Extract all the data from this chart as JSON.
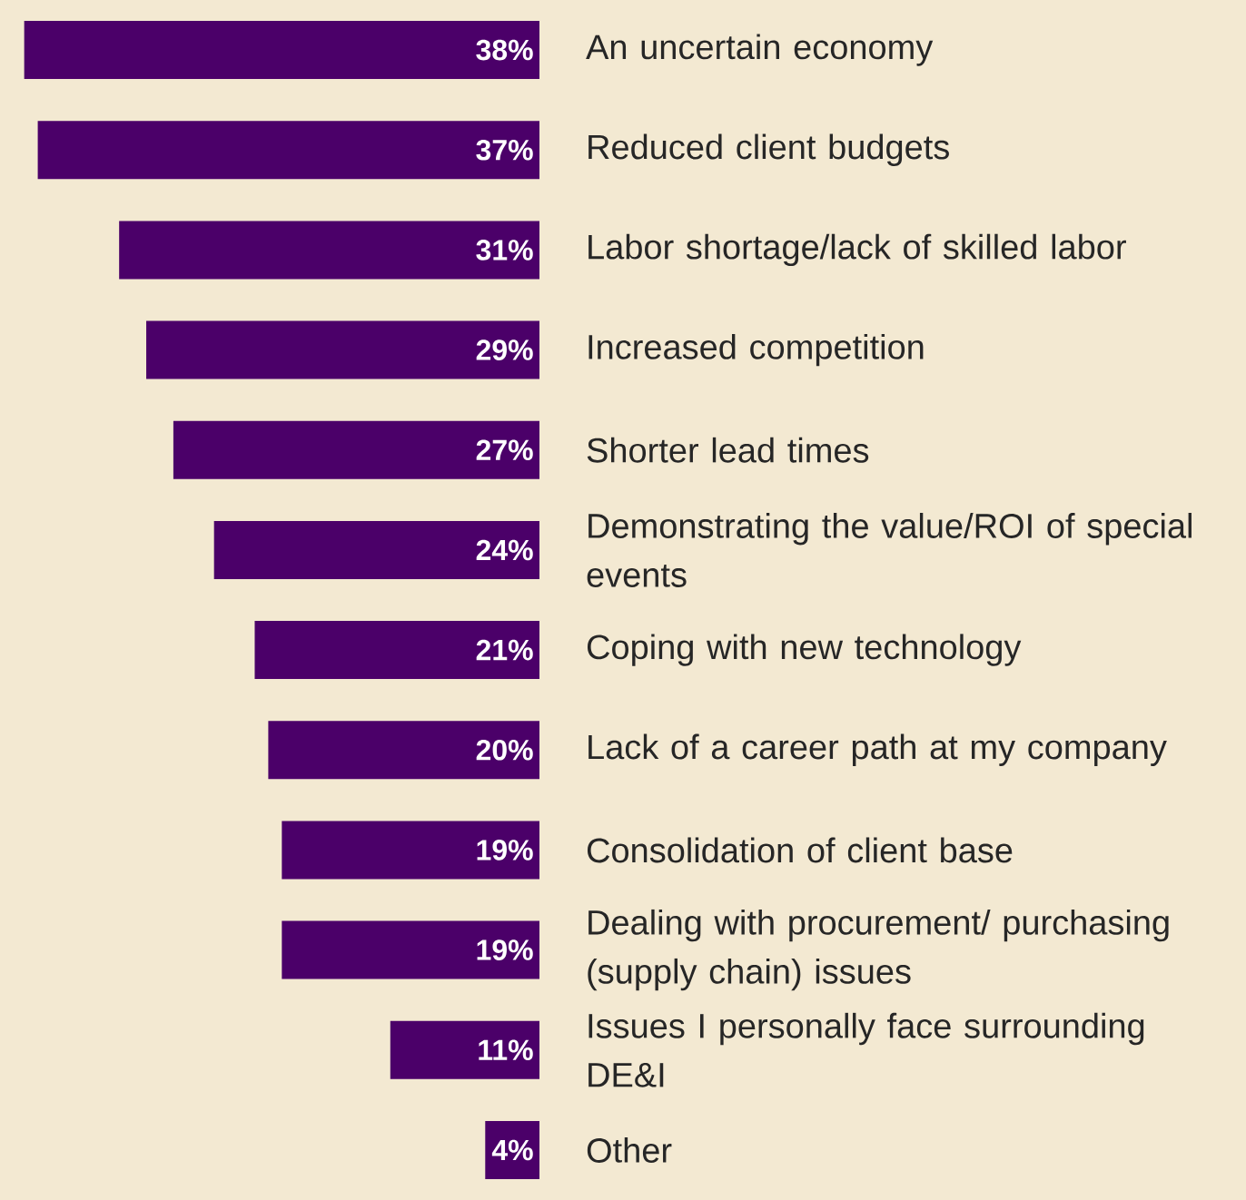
{
  "chart_data": {
    "type": "bar",
    "orientation": "horizontal",
    "color": "#4b0069",
    "categories": [
      "An uncertain economy",
      "Reduced client budgets",
      "Labor shortage/lack of skilled labor",
      "Increased competition",
      "Shorter lead times",
      "Demonstrating the value/ROI of special events",
      "Coping with new technology",
      "Lack of a career path at my company",
      "Consolidation of client base",
      "Dealing with procurement/ purchasing (supply chain) issues",
      "Issues I personally face surrounding DE&I",
      "Other"
    ],
    "values": [
      38,
      37,
      31,
      29,
      27,
      24,
      21,
      20,
      19,
      19,
      11,
      4
    ],
    "value_labels": [
      "38%",
      "37%",
      "31%",
      "29%",
      "27%",
      "24%",
      "21%",
      "20%",
      "19%",
      "19%",
      "11%",
      "4%"
    ]
  }
}
